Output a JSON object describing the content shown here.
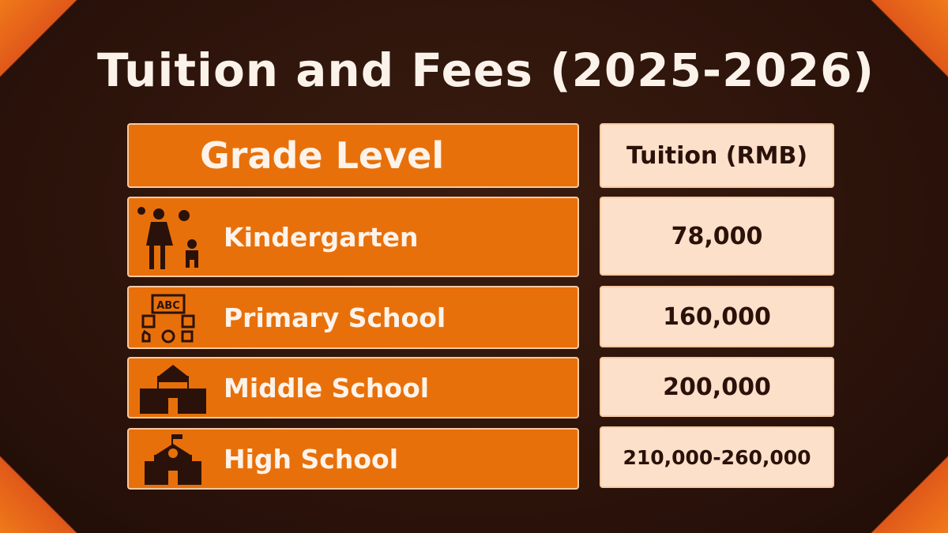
{
  "title": "Tuition and Fees (2025-2026)",
  "table": {
    "header": {
      "grade": "Grade Level",
      "tuition": "Tuition (RMB)"
    },
    "rows": [
      {
        "grade": "Kindergarten",
        "tuition": "78,000",
        "icon": "parent-child-icon"
      },
      {
        "grade": "Primary School",
        "tuition": "160,000",
        "icon": "abc-board-icon"
      },
      {
        "grade": "Middle School",
        "tuition": "200,000",
        "icon": "school-building-icon"
      },
      {
        "grade": "High School",
        "tuition": "210,000-260,000",
        "icon": "school-clock-building-icon"
      }
    ]
  },
  "colors": {
    "background": "#2c140c",
    "accent": "#e8700a",
    "cell_light": "#fde0c9",
    "text_dark": "#2a120a"
  }
}
